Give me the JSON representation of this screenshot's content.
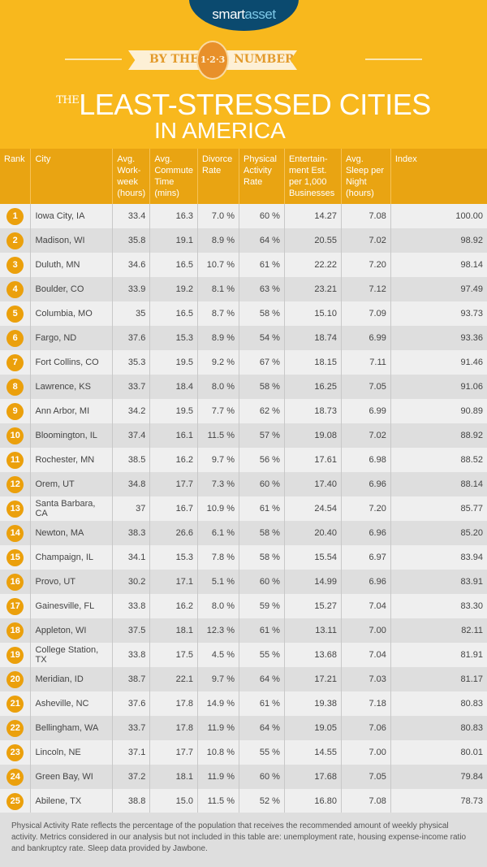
{
  "brand": {
    "smart": "smart",
    "asset": "asset"
  },
  "banner": {
    "left": "BY THE",
    "coin": "1·2·3",
    "right": "NUMBERS"
  },
  "title": {
    "the": "THE",
    "main": "LEAST-STRESSED CITIES",
    "line2": "IN AMERICA"
  },
  "columns": [
    "Rank",
    "City",
    "Avg. Work-week (hours)",
    "Avg. Commute Time (mins)",
    "Divorce Rate",
    "Physical Activity Rate",
    "Entertain-ment Est. per 1,000 Businesses",
    "Avg. Sleep per Night (hours)",
    "Index"
  ],
  "rows": [
    [
      "1",
      "Iowa City, IA",
      "33.4",
      "16.3",
      "7.0 %",
      "60 %",
      "14.27",
      "7.08",
      "100.00"
    ],
    [
      "2",
      "Madison, WI",
      "35.8",
      "19.1",
      "8.9 %",
      "64 %",
      "20.55",
      "7.02",
      "98.92"
    ],
    [
      "3",
      "Duluth, MN",
      "34.6",
      "16.5",
      "10.7 %",
      "61 %",
      "22.22",
      "7.20",
      "98.14"
    ],
    [
      "4",
      "Boulder, CO",
      "33.9",
      "19.2",
      "8.1 %",
      "63 %",
      "23.21",
      "7.12",
      "97.49"
    ],
    [
      "5",
      "Columbia, MO",
      "35",
      "16.5",
      "8.7 %",
      "58 %",
      "15.10",
      "7.09",
      "93.73"
    ],
    [
      "6",
      "Fargo, ND",
      "37.6",
      "15.3",
      "8.9 %",
      "54 %",
      "18.74",
      "6.99",
      "93.36"
    ],
    [
      "7",
      "Fort Collins, CO",
      "35.3",
      "19.5",
      "9.2 %",
      "67 %",
      "18.15",
      "7.11",
      "91.46"
    ],
    [
      "8",
      "Lawrence, KS",
      "33.7",
      "18.4",
      "8.0 %",
      "58 %",
      "16.25",
      "7.05",
      "91.06"
    ],
    [
      "9",
      "Ann Arbor, MI",
      "34.2",
      "19.5",
      "7.7 %",
      "62 %",
      "18.73",
      "6.99",
      "90.89"
    ],
    [
      "10",
      "Bloomington, IL",
      "37.4",
      "16.1",
      "11.5 %",
      "57 %",
      "19.08",
      "7.02",
      "88.92"
    ],
    [
      "11",
      "Rochester, MN",
      "38.5",
      "16.2",
      "9.7 %",
      "56 %",
      "17.61",
      "6.98",
      "88.52"
    ],
    [
      "12",
      "Orem, UT",
      "34.8",
      "17.7",
      "7.3 %",
      "60 %",
      "17.40",
      "6.96",
      "88.14"
    ],
    [
      "13",
      "Santa Barbara, CA",
      "37",
      "16.7",
      "10.9 %",
      "61 %",
      "24.54",
      "7.20",
      "85.77"
    ],
    [
      "14",
      "Newton, MA",
      "38.3",
      "26.6",
      "6.1 %",
      "58 %",
      "20.40",
      "6.96",
      "85.20"
    ],
    [
      "15",
      "Champaign, IL",
      "34.1",
      "15.3",
      "7.8 %",
      "58 %",
      "15.54",
      "6.97",
      "83.94"
    ],
    [
      "16",
      "Provo, UT",
      "30.2",
      "17.1",
      "5.1 %",
      "60 %",
      "14.99",
      "6.96",
      "83.91"
    ],
    [
      "17",
      "Gainesville, FL",
      "33.8",
      "16.2",
      "8.0 %",
      "59 %",
      "15.27",
      "7.04",
      "83.30"
    ],
    [
      "18",
      "Appleton, WI",
      "37.5",
      "18.1",
      "12.3 %",
      "61 %",
      "13.11",
      "7.00",
      "82.11"
    ],
    [
      "19",
      "College Station, TX",
      "33.8",
      "17.5",
      "4.5 %",
      "55 %",
      "13.68",
      "7.04",
      "81.91"
    ],
    [
      "20",
      "Meridian, ID",
      "38.7",
      "22.1",
      "9.7 %",
      "64 %",
      "17.21",
      "7.03",
      "81.17"
    ],
    [
      "21",
      "Asheville, NC",
      "37.6",
      "17.8",
      "14.9 %",
      "61 %",
      "19.38",
      "7.18",
      "80.83"
    ],
    [
      "22",
      "Bellingham, WA",
      "33.7",
      "17.8",
      "11.9 %",
      "64 %",
      "19.05",
      "7.06",
      "80.83"
    ],
    [
      "23",
      "Lincoln, NE",
      "37.1",
      "17.7",
      "10.8 %",
      "55 %",
      "14.55",
      "7.00",
      "80.01"
    ],
    [
      "24",
      "Green Bay, WI",
      "37.2",
      "18.1",
      "11.9 %",
      "60 %",
      "17.68",
      "7.05",
      "79.84"
    ],
    [
      "25",
      "Abilene, TX",
      "38.8",
      "15.0",
      "11.5 %",
      "52 %",
      "16.80",
      "7.08",
      "78.73"
    ]
  ],
  "footnote": "Physical Activity Rate reflects the percentage of the population that receives the recommended amount of weekly physical activity. Metrics considered in our analysis but not included in this table are: unemployment rate, housing expense-income ratio and bankruptcy rate. Sleep data provided by Jawbone."
}
